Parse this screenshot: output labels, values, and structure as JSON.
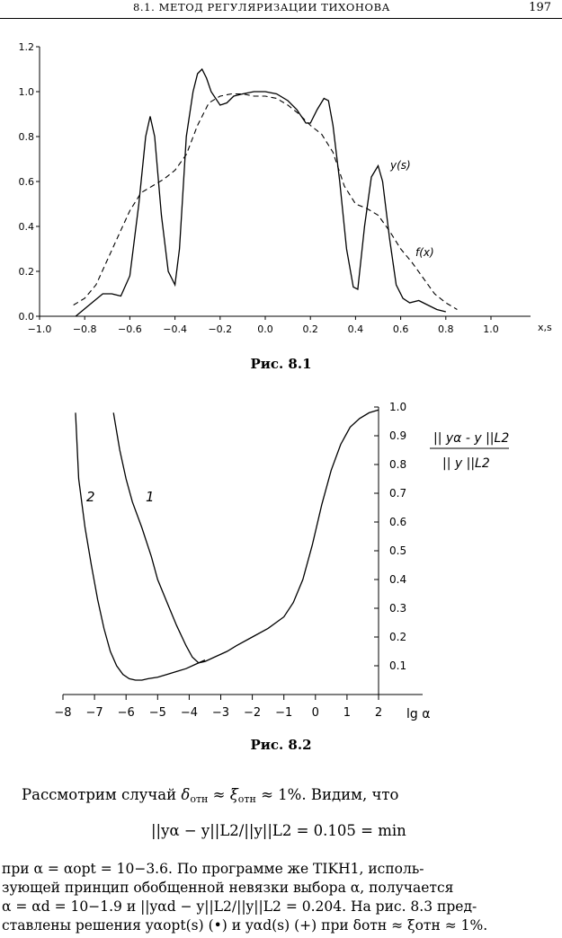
{
  "header": {
    "title": "8.1. МЕТОД РЕГУЛЯРИЗАЦИИ ТИХОНОВА",
    "page": "197"
  },
  "figure1": {
    "caption": "Рис. 8.1",
    "curve_label_y": "y(s)",
    "curve_label_f": "f(x)",
    "axis_label": "x,s"
  },
  "figure2": {
    "caption": "Рис. 8.2",
    "curve_label_1": "1",
    "curve_label_2": "2",
    "xlabel": "lg α",
    "ratio_numerator": "|| yα - y ||L2",
    "ratio_denominator": "|| y ||L2"
  },
  "chart_data": [
    {
      "type": "line",
      "xlim": [
        -1.0,
        1.0
      ],
      "ylim": [
        0.0,
        1.2
      ],
      "xticks": [
        "−1.0",
        "−0.8",
        "−0.6",
        "−0.4",
        "−0.2",
        "0.0",
        "0.2",
        "0.4",
        "0.6",
        "0.8",
        "1.0"
      ],
      "yticks": [
        "0.0",
        "0.2",
        "0.4",
        "0.6",
        "0.8",
        "1.0",
        "1.2"
      ],
      "series": [
        {
          "name": "y(s)",
          "style": "solid",
          "x": [
            -0.84,
            -0.78,
            -0.72,
            -0.68,
            -0.64,
            -0.6,
            -0.56,
            -0.53,
            -0.51,
            -0.49,
            -0.46,
            -0.43,
            -0.4,
            -0.38,
            -0.35,
            -0.32,
            -0.3,
            -0.28,
            -0.26,
            -0.24,
            -0.2,
            -0.17,
            -0.14,
            -0.1,
            -0.05,
            0.0,
            0.05,
            0.1,
            0.14,
            0.18,
            0.2,
            0.23,
            0.26,
            0.28,
            0.3,
            0.33,
            0.36,
            0.39,
            0.41,
            0.44,
            0.47,
            0.5,
            0.52,
            0.55,
            0.58,
            0.61,
            0.64,
            0.68,
            0.72,
            0.76,
            0.8
          ],
          "y": [
            0.0,
            0.05,
            0.1,
            0.1,
            0.09,
            0.18,
            0.5,
            0.8,
            0.89,
            0.8,
            0.45,
            0.2,
            0.14,
            0.3,
            0.8,
            1.0,
            1.08,
            1.1,
            1.06,
            1.0,
            0.94,
            0.95,
            0.98,
            0.99,
            1.0,
            1.0,
            0.99,
            0.96,
            0.92,
            0.86,
            0.86,
            0.92,
            0.97,
            0.96,
            0.85,
            0.6,
            0.3,
            0.13,
            0.12,
            0.4,
            0.62,
            0.67,
            0.6,
            0.35,
            0.14,
            0.08,
            0.06,
            0.07,
            0.05,
            0.03,
            0.02
          ]
        },
        {
          "name": "f(x)",
          "style": "dashed",
          "x": [
            -0.85,
            -0.8,
            -0.75,
            -0.7,
            -0.65,
            -0.6,
            -0.55,
            -0.5,
            -0.45,
            -0.4,
            -0.35,
            -0.3,
            -0.25,
            -0.2,
            -0.15,
            -0.1,
            -0.05,
            0.0,
            0.05,
            0.1,
            0.15,
            0.2,
            0.25,
            0.3,
            0.35,
            0.4,
            0.45,
            0.5,
            0.55,
            0.6,
            0.65,
            0.7,
            0.75,
            0.8,
            0.85
          ],
          "y": [
            0.05,
            0.08,
            0.14,
            0.25,
            0.36,
            0.47,
            0.55,
            0.58,
            0.61,
            0.65,
            0.72,
            0.85,
            0.95,
            0.98,
            0.99,
            0.99,
            0.98,
            0.98,
            0.97,
            0.94,
            0.9,
            0.85,
            0.81,
            0.73,
            0.58,
            0.5,
            0.48,
            0.45,
            0.38,
            0.3,
            0.24,
            0.17,
            0.1,
            0.06,
            0.03
          ]
        }
      ]
    },
    {
      "type": "line",
      "xlim": [
        -8,
        2
      ],
      "ylim": [
        0.0,
        1.0
      ],
      "xticks": [
        "−8",
        "−7",
        "−6",
        "−5",
        "−4",
        "−3",
        "−2",
        "−1",
        "0",
        "1",
        "2"
      ],
      "yticks": [
        "0.1",
        "0.2",
        "0.3",
        "0.4",
        "0.5",
        "0.6",
        "0.7",
        "0.8",
        "0.9",
        "1.0"
      ],
      "series": [
        {
          "name": "1",
          "style": "solid",
          "x": [
            -6.4,
            -6.2,
            -6.0,
            -5.8,
            -5.5,
            -5.2,
            -5.0,
            -4.7,
            -4.4,
            -4.1,
            -3.9,
            -3.7,
            -3.5,
            -3.2,
            -2.8,
            -2.5,
            -2.0,
            -1.5,
            -1.0,
            -0.7,
            -0.4,
            -0.1,
            0.2,
            0.5,
            0.8,
            1.1,
            1.4,
            1.7,
            2.0
          ],
          "y": [
            0.98,
            0.85,
            0.75,
            0.67,
            0.58,
            0.48,
            0.4,
            0.32,
            0.24,
            0.17,
            0.13,
            0.11,
            0.115,
            0.13,
            0.15,
            0.17,
            0.2,
            0.23,
            0.27,
            0.32,
            0.4,
            0.52,
            0.66,
            0.78,
            0.87,
            0.93,
            0.96,
            0.98,
            0.99
          ]
        },
        {
          "name": "2",
          "style": "solid",
          "x": [
            -7.6,
            -7.5,
            -7.3,
            -7.1,
            -6.9,
            -6.7,
            -6.5,
            -6.3,
            -6.1,
            -5.9,
            -5.7,
            -5.5,
            -5.3,
            -5.0,
            -4.7,
            -4.4,
            -4.1,
            -3.8,
            -3.5
          ],
          "y": [
            0.98,
            0.75,
            0.58,
            0.45,
            0.33,
            0.23,
            0.15,
            0.1,
            0.07,
            0.055,
            0.05,
            0.05,
            0.055,
            0.06,
            0.07,
            0.08,
            0.09,
            0.105,
            0.12
          ]
        }
      ]
    }
  ],
  "text": {
    "para1_a": "Рассмотрим случай",
    "delta": "δ",
    "xi": "ξ",
    "otn": "отн",
    "approx": "≈",
    "para1_b": "1%. Видим, что",
    "formula": "||yα − y||L2/||y||L2 = 0.105 = min",
    "line1": "при  α = αopt = 10−3.6.  По  программе  же  TIKH1,  исполь-",
    "line2": "зующей  принцип  обобщенной  невязки  выбора  α,  получается",
    "line3": "α = αd = 10−1.9  и  ||yαd − y||L2/||y||L2 = 0.204.  На  рис. 8.3  пред-",
    "line4": "ставлены решения yαopt(s) (•) и yαd(s) (+) при δотн ≈ ξотн ≈ 1%."
  }
}
